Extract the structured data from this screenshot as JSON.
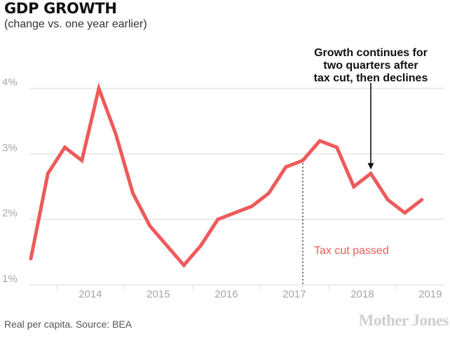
{
  "header": {
    "title": "GDP GROWTH",
    "subtitle": "(change vs. one year earlier)"
  },
  "footer": {
    "source": "Real per capita. Source: BEA",
    "brand": "Mother Jones"
  },
  "colors": {
    "line": "#ee5a5a",
    "grid": "#d9d9d9",
    "tick_text": "#a6a6a6",
    "annotation": "#111111"
  },
  "chart_data": {
    "type": "line",
    "title": "GDP GROWTH",
    "subtitle": "(change vs. one year earlier)",
    "xlabel": "",
    "ylabel": "",
    "y_unit": "%",
    "ylim": [
      1,
      4
    ],
    "y_ticks": [
      1,
      2,
      3,
      4
    ],
    "y_tick_labels": [
      "1%",
      "2%",
      "3%",
      "4%"
    ],
    "grid": "horizontal",
    "x_range": [
      "2013-Q3",
      "2019-Q3"
    ],
    "x_tick_labels": [
      "2014",
      "2015",
      "2016",
      "2017",
      "2018",
      "2019"
    ],
    "x": [
      "2013-Q3",
      "2013-Q4",
      "2014-Q1",
      "2014-Q2",
      "2014-Q3",
      "2014-Q4",
      "2015-Q1",
      "2015-Q2",
      "2015-Q3",
      "2015-Q4",
      "2016-Q1",
      "2016-Q2",
      "2016-Q3",
      "2016-Q4",
      "2017-Q1",
      "2017-Q2",
      "2017-Q3",
      "2017-Q4",
      "2018-Q1",
      "2018-Q2",
      "2018-Q3",
      "2018-Q4",
      "2019-Q1",
      "2019-Q2",
      "2019-Q3"
    ],
    "series": [
      {
        "values": [
          1.4,
          2.7,
          3.1,
          2.9,
          4.0,
          3.3,
          2.4,
          1.9,
          1.6,
          1.3,
          1.6,
          2.0,
          2.1,
          2.2,
          2.4,
          2.8,
          2.9,
          3.2,
          3.1,
          2.5,
          2.7,
          2.3,
          2.1,
          2.3,
          null
        ]
      }
    ],
    "annotations": [
      {
        "text": "Tax cut passed",
        "x": "2017-Q3",
        "style": "dotted vertical line"
      },
      {
        "text_lines": [
          "Growth continues for",
          "two quarters after",
          "tax cut, then declines"
        ],
        "x": "2018-Q3",
        "style": "arrow"
      }
    ]
  }
}
